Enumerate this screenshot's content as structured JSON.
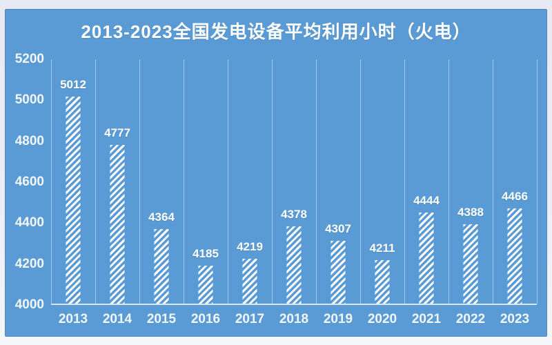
{
  "chart_data": {
    "type": "bar",
    "title": "2013-2023全国发电设备平均利用小时（火电）",
    "categories": [
      "2013",
      "2014",
      "2015",
      "2016",
      "2017",
      "2018",
      "2019",
      "2020",
      "2021",
      "2022",
      "2023"
    ],
    "values": [
      5012,
      4777,
      4364,
      4185,
      4219,
      4378,
      4307,
      4211,
      4444,
      4388,
      4466
    ],
    "xlabel": "",
    "ylabel": "",
    "ylim": [
      4000,
      5200
    ],
    "ytick_step": 200,
    "yticks": [
      5200,
      5000,
      4800,
      4600,
      4400,
      4200,
      4000
    ],
    "grid": "vertical-category-boundaries-only",
    "legend": "none",
    "bar_style": "white-diagonal-hatch",
    "data_labels": "above-bars"
  },
  "colors": {
    "panel_background": "#5b9bd5",
    "frame_background": "#eceef6",
    "bar_hatch": "#ffffff",
    "gridline": "rgba(255,255,255,0.45)",
    "axis_line": "rgba(234,243,251,0.85)",
    "title_text": "#ffffff",
    "axis_text": "#f2f7fc",
    "value_label_text": "#ffffff"
  }
}
